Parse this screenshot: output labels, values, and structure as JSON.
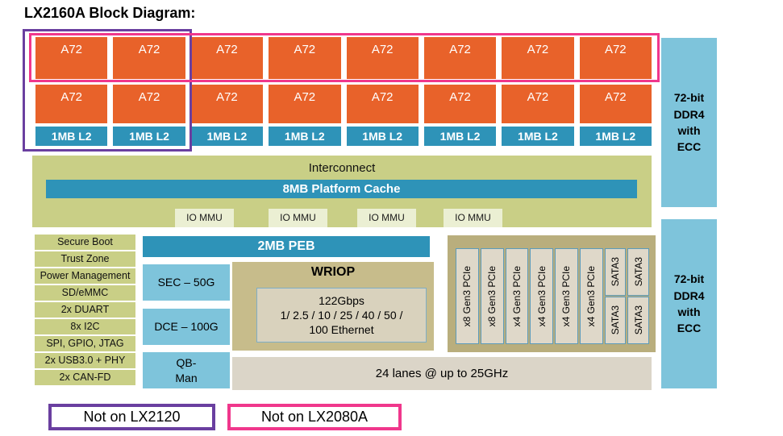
{
  "title": "LX2160A Block Diagram:",
  "cores": {
    "columns": 8,
    "core_label": "A72",
    "l2_label": "1MB L2"
  },
  "memory": {
    "ddr_label": "72-bit\nDDR4\nwith\nECC"
  },
  "interconnect": {
    "label": "Interconnect",
    "cache_label": "8MB Platform Cache",
    "iommu_label": "IO MMU",
    "iommu_count": 4
  },
  "peripherals": [
    "Secure Boot",
    "Trust Zone",
    "Power Management",
    "SD/eMMC",
    "2x DUART",
    "8x I2C",
    "SPI, GPIO, JTAG",
    "2x USB3.0 + PHY",
    "2x CAN-FD"
  ],
  "accelerators": {
    "peb_label": "2MB PEB",
    "sec_label": "SEC – 50G",
    "dce_label": "DCE – 100G",
    "qbman_label": "QB-\nMan"
  },
  "wriop": {
    "title": "WRIOP",
    "detail": "122Gbps\n1/ 2.5 / 10 / 25 / 40 / 50 /\n100 Ethernet"
  },
  "serdes": {
    "pcie_lanes": [
      "x8 Gen3 PCIe",
      "x8 Gen3 PCIe",
      "x4 Gen3 PCIe",
      "x4 Gen3 PCIe",
      "x4 Gen3 PCIe",
      "x4 Gen3 PCIe"
    ],
    "sata_label": "SATA3",
    "sata_columns": 2,
    "bottom_label": "24 lanes @ up to 25GHz"
  },
  "legend": [
    {
      "label": "Not on LX2120",
      "color": "#6A3FA0"
    },
    {
      "label": "Not on LX2080A",
      "color": "#F0378C"
    }
  ],
  "colors": {
    "core_orange": "#E8622A",
    "cache_blue": "#2E93B8",
    "band_khaki": "#C9CF86",
    "pale_khaki": "#EBEFD3",
    "light_blue": "#7EC4DB",
    "wriop_tan": "#C7BC8B",
    "panel_tan": "#B9AE7D",
    "slot_fill": "#DFD8C9",
    "slot_border": "#5C9BBA",
    "lanes_bar": "#DBD5C8",
    "purple": "#6A3FA0",
    "pink": "#F0378C"
  }
}
